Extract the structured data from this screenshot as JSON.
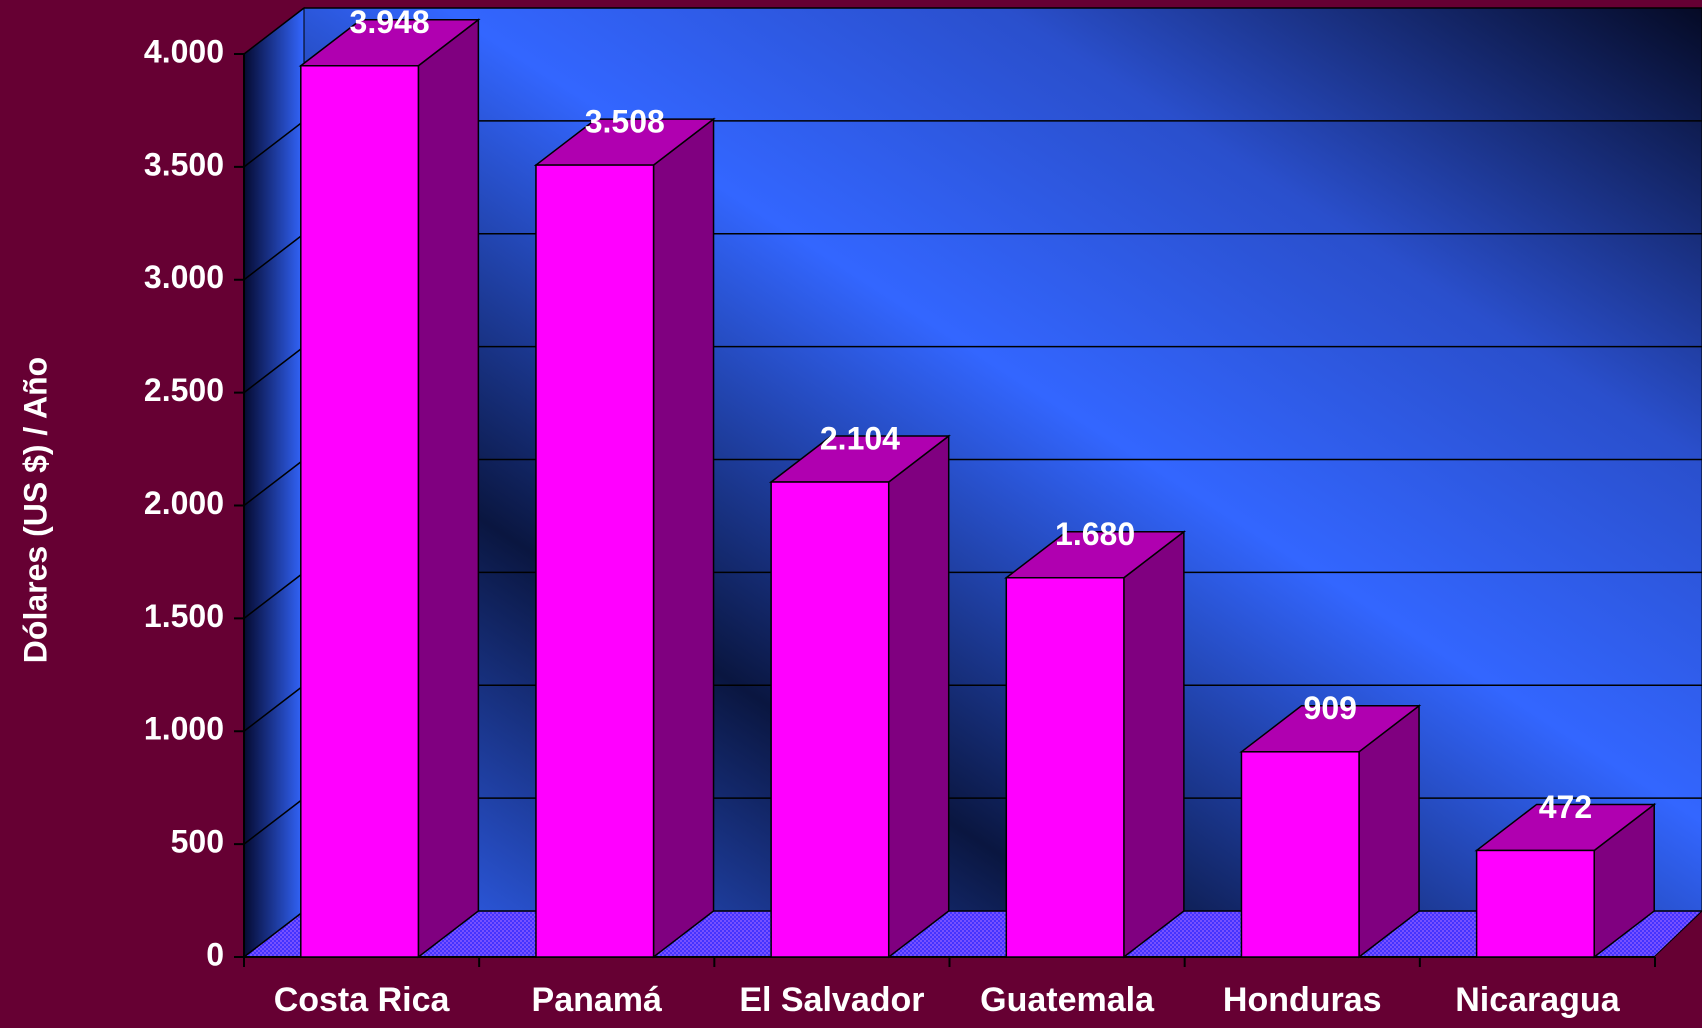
{
  "chart_data": {
    "type": "bar3d",
    "y_label": "Dólares (US $) / Año",
    "categories": [
      "Costa Rica",
      "Panamá",
      "El Salvador",
      "Guatemala",
      "Honduras",
      "Nicaragua"
    ],
    "values": [
      3948,
      3508,
      2104,
      1680,
      909,
      472
    ],
    "value_labels": [
      "3.948",
      "3.508",
      "2.104",
      "1.680",
      "909",
      "472"
    ],
    "color": "#ff00ff",
    "ylim": [
      0,
      4000
    ],
    "yticks": [
      0,
      500,
      {
        "value": 1000,
        "label": "1.000"
      },
      {
        "value": 1500,
        "label": "1.500"
      },
      {
        "value": 2000,
        "label": "2.000"
      },
      {
        "value": 2500,
        "label": "2.500"
      },
      {
        "value": 3000,
        "label": "3.000"
      },
      {
        "value": 3500,
        "label": "3.500"
      },
      {
        "value": 4000,
        "label": "4.000"
      }
    ],
    "grid": true
  }
}
